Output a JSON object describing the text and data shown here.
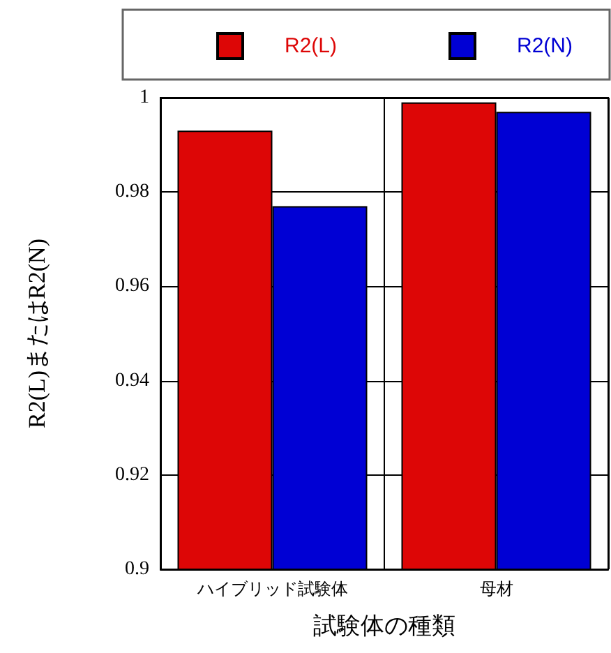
{
  "chart_data": {
    "type": "bar",
    "xlabel": "試験体の種類",
    "ylabel": "R2(L)またはR2(N)",
    "categories": [
      "ハイブリッド試験体",
      "母材"
    ],
    "series": [
      {
        "name": "R2(L)",
        "color": "#dd0606",
        "values": [
          0.993,
          0.999
        ]
      },
      {
        "name": "R2(N)",
        "color": "#0000d4",
        "values": [
          0.977,
          0.997
        ]
      }
    ],
    "ylim": [
      0.9,
      1
    ],
    "yticks": [
      0.9,
      0.92,
      0.94,
      0.96,
      0.98,
      1
    ],
    "grid": true,
    "legend": "top"
  }
}
